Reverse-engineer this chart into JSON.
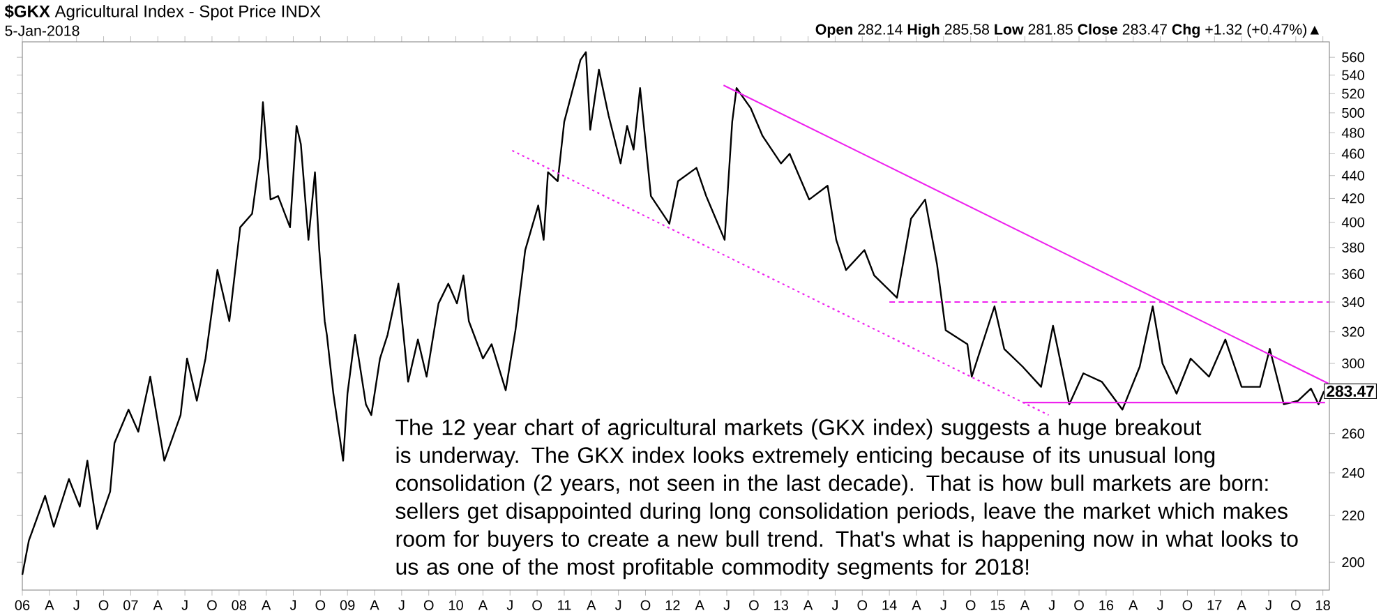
{
  "chart_data": {
    "type": "line",
    "title": "**$GKX** Agricultural Index - Spot Price INDX",
    "subtitle": "5-Jan-2018",
    "annotations": [
      "**Open** 282.14 **High** 285.58 **Low** 281.85 **Close** 283.47 **Chg** +1.32 (+0.47%)▲",
      "The 12 year chart of agricultural markets (GKX index) suggests a huge breakout is underway. The GKX index looks extremely enticing because of its unusual long consolidation (2 years, not seen in the last decade). That is how bull markets are born: sellers get disappointed during long consolidation periods, leave the market which makes room for buyers to create a new bull trend. That's what is happening now in what looks to us as one of the most profitable commodity segments for 2018!",
      {
        "text": "283.47",
        "x": 2018.01,
        "y": 283.47
      }
    ],
    "log": "y",
    "xlim": [
      2006.0,
      2018.06
    ],
    "ylim": [
      189,
      578
    ],
    "xticks": [
      {
        "value": 2006,
        "label": "06"
      },
      {
        "value": 2006.25,
        "label": "A"
      },
      {
        "value": 2006.5,
        "label": "J"
      },
      {
        "value": 2006.75,
        "label": "O"
      },
      {
        "value": 2007,
        "label": "07"
      },
      {
        "value": 2007.25,
        "label": "A"
      },
      {
        "value": 2007.5,
        "label": "J"
      },
      {
        "value": 2007.75,
        "label": "O"
      },
      {
        "value": 2008,
        "label": "08"
      },
      {
        "value": 2008.25,
        "label": "A"
      },
      {
        "value": 2008.5,
        "label": "J"
      },
      {
        "value": 2008.75,
        "label": "O"
      },
      {
        "value": 2009,
        "label": "09"
      },
      {
        "value": 2009.25,
        "label": "A"
      },
      {
        "value": 2009.5,
        "label": "J"
      },
      {
        "value": 2009.75,
        "label": "O"
      },
      {
        "value": 2010,
        "label": "10"
      },
      {
        "value": 2010.25,
        "label": "A"
      },
      {
        "value": 2010.5,
        "label": "J"
      },
      {
        "value": 2010.75,
        "label": "O"
      },
      {
        "value": 2011,
        "label": "11"
      },
      {
        "value": 2011.25,
        "label": "A"
      },
      {
        "value": 2011.5,
        "label": "J"
      },
      {
        "value": 2011.75,
        "label": "O"
      },
      {
        "value": 2012,
        "label": "12"
      },
      {
        "value": 2012.25,
        "label": "A"
      },
      {
        "value": 2012.5,
        "label": "J"
      },
      {
        "value": 2012.75,
        "label": "O"
      },
      {
        "value": 2013,
        "label": "13"
      },
      {
        "value": 2013.25,
        "label": "A"
      },
      {
        "value": 2013.5,
        "label": "J"
      },
      {
        "value": 2013.75,
        "label": "O"
      },
      {
        "value": 2014,
        "label": "14"
      },
      {
        "value": 2014.25,
        "label": "A"
      },
      {
        "value": 2014.5,
        "label": "J"
      },
      {
        "value": 2014.75,
        "label": "O"
      },
      {
        "value": 2015,
        "label": "15"
      },
      {
        "value": 2015.25,
        "label": "A"
      },
      {
        "value": 2015.5,
        "label": "J"
      },
      {
        "value": 2015.75,
        "label": "O"
      },
      {
        "value": 2016,
        "label": "16"
      },
      {
        "value": 2016.25,
        "label": "A"
      },
      {
        "value": 2016.5,
        "label": "J"
      },
      {
        "value": 2016.75,
        "label": "O"
      },
      {
        "value": 2017,
        "label": "17"
      },
      {
        "value": 2017.25,
        "label": "A"
      },
      {
        "value": 2017.5,
        "label": "J"
      },
      {
        "value": 2017.75,
        "label": "O"
      },
      {
        "value": 2018,
        "label": "18"
      }
    ],
    "yticks": [
      200,
      220,
      240,
      260,
      {
        "value": 280,
        "label": null
      },
      300,
      320,
      340,
      360,
      380,
      400,
      420,
      440,
      460,
      480,
      500,
      520,
      540,
      560
    ],
    "series": [
      {
        "type": "line",
        "color": "#000000",
        "line_style": "solid",
        "x": [
          2006.0,
          2006.06,
          2006.21,
          2006.29,
          2006.43,
          2006.53,
          2006.6,
          2006.69,
          2006.81,
          2006.85,
          2006.98,
          2007.07,
          2007.18,
          2007.31,
          2007.46,
          2007.52,
          2007.61,
          2007.69,
          2007.8,
          2007.91,
          2008.01,
          2008.12,
          2008.19,
          2008.22,
          2008.29,
          2008.36,
          2008.47,
          2008.53,
          2008.57,
          2008.64,
          2008.7,
          2008.74,
          2008.79,
          2008.81,
          2008.87,
          2008.96,
          2009.0,
          2009.07,
          2009.17,
          2009.22,
          2009.3,
          2009.37,
          2009.47,
          2009.56,
          2009.65,
          2009.73,
          2009.84,
          2009.93,
          2010.01,
          2010.07,
          2010.12,
          2010.25,
          2010.33,
          2010.46,
          2010.55,
          2010.64,
          2010.76,
          2010.81,
          2010.85,
          2010.94,
          2011.0,
          2011.15,
          2011.2,
          2011.24,
          2011.32,
          2011.41,
          2011.52,
          2011.58,
          2011.64,
          2011.7,
          2011.8,
          2011.97,
          2012.05,
          2012.22,
          2012.31,
          2012.48,
          2012.55,
          2012.59,
          2012.72,
          2012.83,
          2013.0,
          2013.08,
          2013.26,
          2013.43,
          2013.51,
          2013.6,
          2013.77,
          2013.86,
          2014.07,
          2014.2,
          2014.33,
          2014.44,
          2014.52,
          2014.72,
          2014.76,
          2014.97,
          2015.06,
          2015.23,
          2015.4,
          2015.51,
          2015.66,
          2015.79,
          2015.96,
          2016.15,
          2016.31,
          2016.43,
          2016.52,
          2016.65,
          2016.78,
          2016.95,
          2017.1,
          2017.25,
          2017.42,
          2017.51,
          2017.64,
          2017.77,
          2017.89,
          2017.96,
          2018.01
        ],
        "values": [
          195,
          209,
          229,
          215,
          237,
          224,
          246,
          214,
          231,
          255,
          273,
          261,
          292,
          246,
          270,
          303,
          278,
          303,
          363,
          327,
          396,
          407,
          456,
          511,
          419,
          422,
          396,
          487,
          469,
          386,
          443,
          378,
          327,
          318,
          282,
          246,
          282,
          318,
          276,
          270,
          303,
          318,
          353,
          289,
          315,
          292,
          339,
          353,
          339,
          359,
          327,
          303,
          312,
          284,
          321,
          378,
          414,
          386,
          443,
          435,
          491,
          557,
          566,
          483,
          546,
          497,
          451,
          487,
          464,
          526,
          422,
          399,
          435,
          447,
          422,
          386,
          491,
          526,
          505,
          477,
          451,
          460,
          419,
          431,
          386,
          363,
          378,
          359,
          343,
          403,
          419,
          367,
          321,
          312,
          292,
          337,
          309,
          298,
          286,
          324,
          276,
          294,
          289,
          273,
          298,
          337,
          300,
          282,
          303,
          292,
          315,
          286,
          286,
          309,
          276,
          278,
          285,
          276,
          283.47
        ]
      },
      {
        "type": "line",
        "color": "#ee22ee",
        "line_style": "solid",
        "x": [
          2012.47,
          2018.05
        ],
        "values": [
          529,
          288
        ]
      },
      {
        "type": "line",
        "color": "#ee22ee",
        "line_style": "dotted",
        "x": [
          2010.52,
          2015.47
        ],
        "values": [
          463,
          270
        ]
      },
      {
        "type": "line",
        "color": "#ee22ee",
        "line_style": "dashed",
        "x": [
          2014.0,
          2018.06
        ],
        "values": [
          340,
          340
        ]
      },
      {
        "type": "line",
        "color": "#ee22ee",
        "line_style": "solid",
        "x": [
          2015.23,
          2018.02
        ],
        "values": [
          277,
          277
        ]
      }
    ]
  }
}
